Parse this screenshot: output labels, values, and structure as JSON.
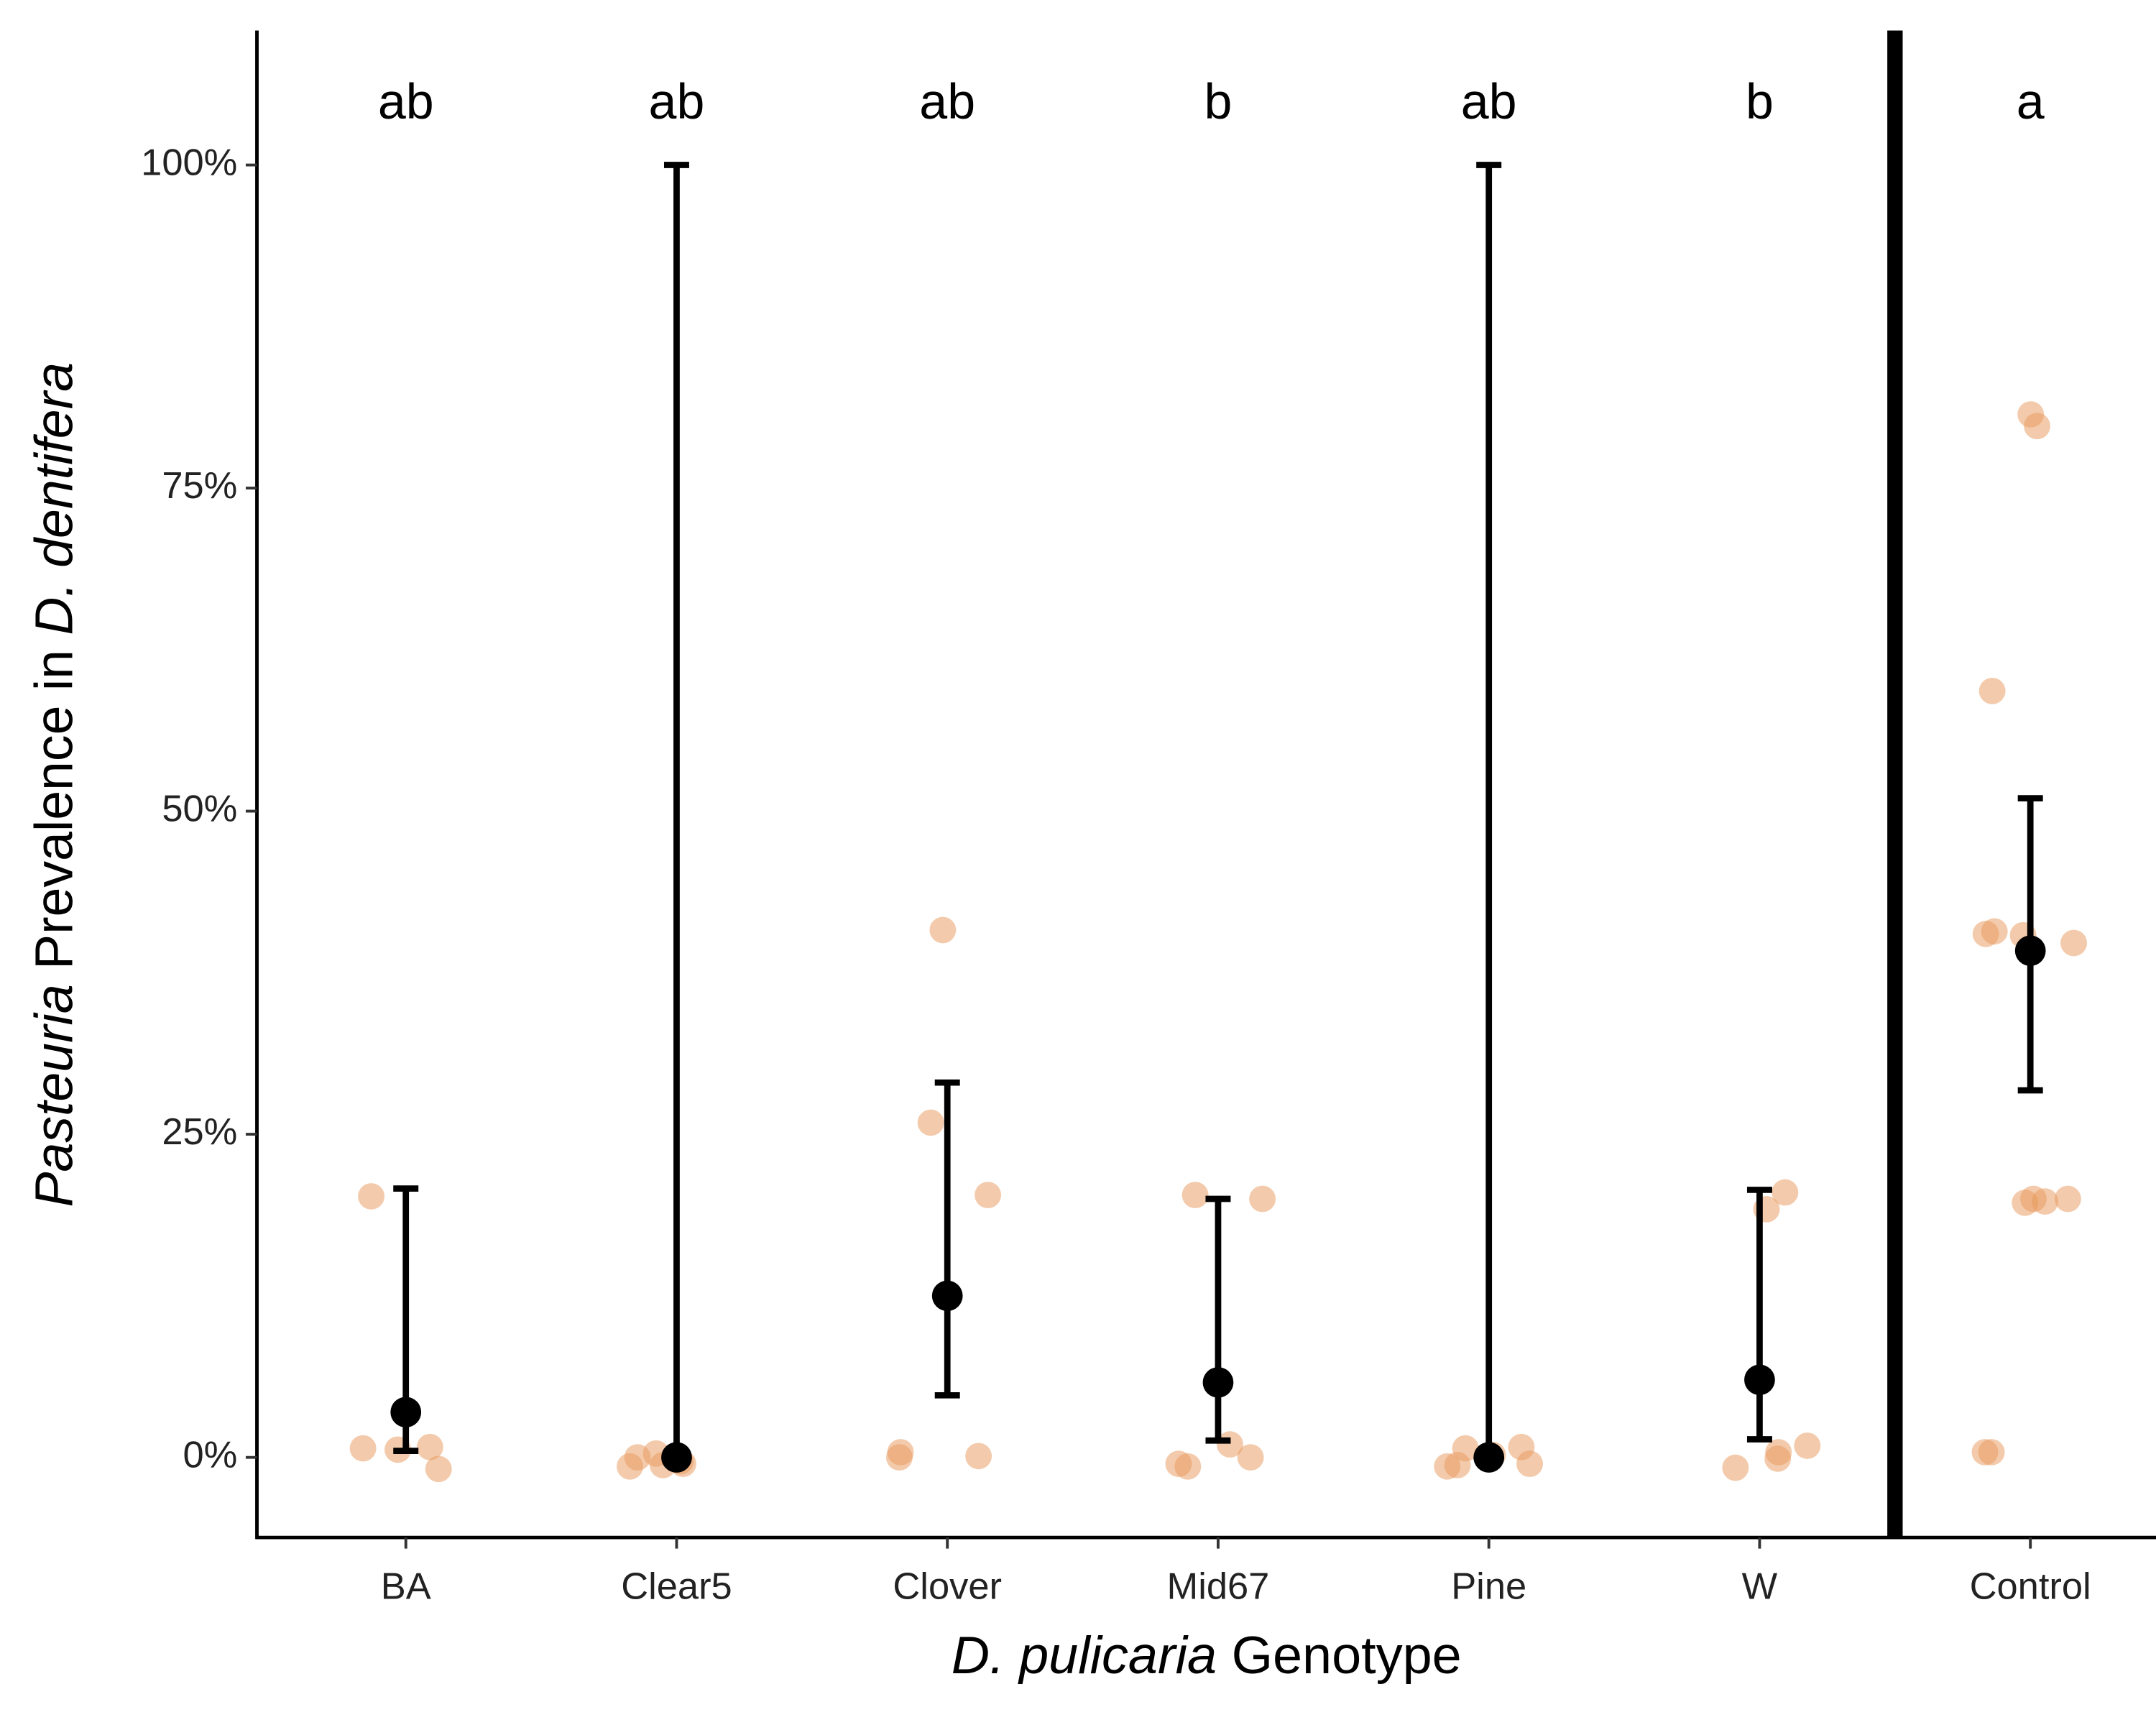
{
  "chart_data": {
    "type": "dotplot",
    "categories": [
      "BA",
      "Clear5",
      "Clover",
      "Mid67",
      "Pine",
      "W",
      "Control"
    ],
    "letters": [
      "ab",
      "ab",
      "ab",
      "b",
      "ab",
      "b",
      "a"
    ],
    "points": [
      [
        0.8,
        0.7,
        0.6,
        -0.9,
        20.2
      ],
      [
        -0.5,
        -0.6,
        0.3,
        -0.3,
        0.0,
        -0.7
      ],
      [
        40.8,
        25.9,
        20.3,
        0.4,
        0.1,
        0.0
      ],
      [
        20.3,
        20.0,
        1.0,
        -0.5,
        -0.7,
        0.0
      ],
      [
        0.8,
        0.2,
        -0.5,
        0.7,
        -0.6,
        -0.7
      ],
      [
        20.5,
        19.2,
        0.4,
        0.9,
        -0.1,
        -0.8
      ],
      [
        80.7,
        79.8,
        59.3,
        40.4,
        39.8,
        40.7,
        40.5,
        20.0,
        20.0,
        19.7,
        19.8,
        0.4,
        0.4
      ]
    ],
    "mean": [
      3.5,
      0.0,
      12.5,
      5.8,
      0.0,
      6.0,
      39.2
    ],
    "ci_low": [
      0.5,
      0.0,
      4.8,
      1.3,
      0.0,
      1.4,
      28.4
    ],
    "ci_high": [
      20.8,
      100,
      29.0,
      20.0,
      100,
      20.7,
      51.0
    ],
    "point_color": "#e8975a",
    "point_opacity": 0.5,
    "mean_color": "#000000",
    "ylim": [
      -6.2,
      110.4
    ],
    "yticks": [
      {
        "value": 0,
        "label": "0%"
      },
      {
        "value": 25,
        "label": "25%"
      },
      {
        "value": 50,
        "label": "50%"
      },
      {
        "value": 75,
        "label": "75%"
      },
      {
        "value": 100,
        "label": "100%"
      }
    ],
    "y_label": [
      "Pasteuria",
      "Prevalence in",
      "D. dentifera"
    ],
    "x_label": [
      "D. pulicaria",
      "Genotype"
    ]
  }
}
